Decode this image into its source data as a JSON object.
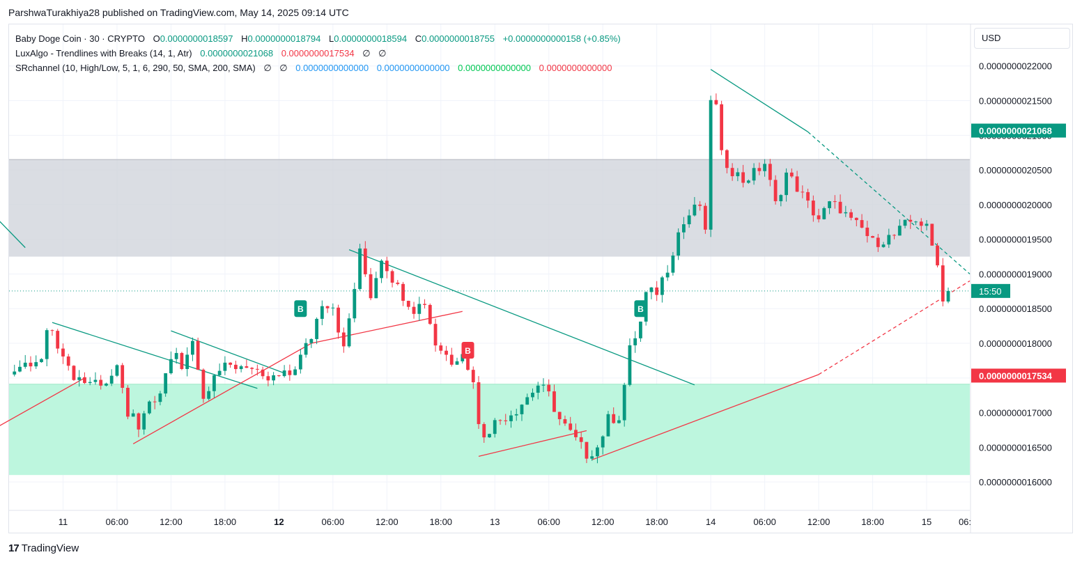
{
  "header": {
    "publisher_line": "ParshwaTurakhiya28 published on TradingView.com, May 14, 2025 09:14 UTC"
  },
  "legend": {
    "symbol": {
      "title": "Baby Doge Coin · 30 · CRYPTO",
      "o_label": "O",
      "o_value": "0.0000000018597",
      "h_label": "H",
      "h_value": "0.0000000018794",
      "l_label": "L",
      "l_value": "0.0000000018594",
      "c_label": "C",
      "c_value": "0.0000000018755",
      "change": "+0.0000000000158 (+0.85%)"
    },
    "luxalgo": {
      "title": "LuxAlgo - Trendlines with Breaks (14, 1, Atr)",
      "upper": "0.0000000021068",
      "lower": "0.0000000017534",
      "n1": "∅",
      "n2": "∅"
    },
    "srchannel": {
      "title": "SRchannel (10, High/Low, 5, 1, 6, 290, 50, SMA, 200, SMA)",
      "n1": "∅",
      "n2": "∅",
      "v1": "0.0000000000000",
      "v2": "0.0000000000000",
      "v3": "0.0000000000000",
      "v4": "0.0000000000000"
    }
  },
  "currency_button": "USD",
  "footer": {
    "brand": "TradingView",
    "logo_glyph": "17"
  },
  "colors": {
    "up": "#089981",
    "down": "#f23645",
    "trend_down": "#089981",
    "trend_up": "#f23645",
    "resistance_zone": "#d1d4dc",
    "support_zone": "#b9f6dc",
    "grid": "#f0f3fa"
  },
  "chart_data": {
    "type": "candlestick",
    "title": "Baby Doge Coin · 30 · CRYPTO",
    "ylim": [
      1.56e-09,
      2.26e-09
    ],
    "y_ticks": [
      "0.0000000022000",
      "0.0000000021500",
      "0.0000000021000",
      "0.0000000020500",
      "0.0000000020000",
      "0.0000000019500",
      "0.0000000019000",
      "0.0000000018500",
      "0.0000000018000",
      "0.0000000017500",
      "0.0000000017000",
      "0.0000000016500",
      "0.0000000016000"
    ],
    "y_tick_values": [
      2.2e-09,
      2.15e-09,
      2.1e-09,
      2.05e-09,
      2e-09,
      1.95e-09,
      1.9e-09,
      1.85e-09,
      1.8e-09,
      1.75e-09,
      1.7e-09,
      1.65e-09,
      1.6e-09
    ],
    "x_axis_range_bars": [
      -10,
      168
    ],
    "x_ticks": [
      {
        "label": "11",
        "bar": 0,
        "bold": false
      },
      {
        "label": "06:00",
        "bar": 10,
        "bold": false
      },
      {
        "label": "12:00",
        "bar": 20,
        "bold": false
      },
      {
        "label": "18:00",
        "bar": 30,
        "bold": false
      },
      {
        "label": "12",
        "bar": 40,
        "bold": true
      },
      {
        "label": "06:00",
        "bar": 50,
        "bold": false
      },
      {
        "label": "12:00",
        "bar": 60,
        "bold": false
      },
      {
        "label": "18:00",
        "bar": 70,
        "bold": false
      },
      {
        "label": "13",
        "bar": 80,
        "bold": false
      },
      {
        "label": "06:00",
        "bar": 90,
        "bold": false
      },
      {
        "label": "12:00",
        "bar": 100,
        "bold": false
      },
      {
        "label": "18:00",
        "bar": 110,
        "bold": false
      },
      {
        "label": "14",
        "bar": 120,
        "bold": false
      },
      {
        "label": "06:00",
        "bar": 130,
        "bold": false
      },
      {
        "label": "12:00",
        "bar": 140,
        "bold": false
      },
      {
        "label": "18:00",
        "bar": 150,
        "bold": false
      },
      {
        "label": "15",
        "bar": 160,
        "bold": false
      },
      {
        "label": "06:",
        "bar": 170,
        "bold": false
      }
    ],
    "bar_interval": "30 minutes",
    "close_path_keypoints": [
      [
        -9,
        1.76e-09
      ],
      [
        -4,
        1.775e-09
      ],
      [
        -3,
        1.82e-09
      ],
      [
        0,
        1.79e-09
      ],
      [
        1,
        1.76e-09
      ],
      [
        4,
        1.745e-09
      ],
      [
        8,
        1.745e-09
      ],
      [
        10,
        1.76e-09
      ],
      [
        12,
        1.7e-09
      ],
      [
        13,
        1.69e-09
      ],
      [
        14,
        1.67e-09
      ],
      [
        15,
        1.7e-09
      ],
      [
        18,
        1.725e-09
      ],
      [
        19,
        1.76e-09
      ],
      [
        21,
        1.785e-09
      ],
      [
        22,
        1.76e-09
      ],
      [
        24,
        1.81e-09
      ],
      [
        26,
        1.72e-09
      ],
      [
        28,
        1.76e-09
      ],
      [
        34,
        1.77e-09
      ],
      [
        37,
        1.745e-09
      ],
      [
        42,
        1.755e-09
      ],
      [
        44,
        1.78e-09
      ],
      [
        46,
        1.81e-09
      ],
      [
        48,
        1.86e-09
      ],
      [
        50,
        1.855e-09
      ],
      [
        52,
        1.79e-09
      ],
      [
        54,
        1.88e-09
      ],
      [
        55,
        1.93e-09
      ],
      [
        57,
        1.87e-09
      ],
      [
        59,
        1.925e-09
      ],
      [
        62,
        1.88e-09
      ],
      [
        63,
        1.87e-09
      ],
      [
        65,
        1.85e-09
      ],
      [
        67,
        1.86e-09
      ],
      [
        69,
        1.8e-09
      ],
      [
        72,
        1.775e-09
      ],
      [
        74,
        1.79e-09
      ],
      [
        75,
        1.76e-09
      ],
      [
        76,
        1.75e-09
      ],
      [
        77,
        1.68e-09
      ],
      [
        78,
        1.67e-09
      ],
      [
        80,
        1.685e-09
      ],
      [
        84,
        1.705e-09
      ],
      [
        88,
        1.74e-09
      ],
      [
        90,
        1.725e-09
      ],
      [
        92,
        1.69e-09
      ],
      [
        95,
        1.66e-09
      ],
      [
        97,
        1.64e-09
      ],
      [
        99,
        1.65e-09
      ],
      [
        101,
        1.69e-09
      ],
      [
        103,
        1.695e-09
      ],
      [
        104,
        1.74e-09
      ],
      [
        105,
        1.79e-09
      ],
      [
        107,
        1.83e-09
      ],
      [
        108,
        1.87e-09
      ],
      [
        110,
        1.875e-09
      ],
      [
        112,
        1.91e-09
      ],
      [
        114,
        1.96e-09
      ],
      [
        116,
        1.985e-09
      ],
      [
        118,
        2e-09
      ],
      [
        119,
        1.955e-09
      ],
      [
        120,
        2.155e-09
      ],
      [
        121,
        2.14e-09
      ],
      [
        122,
        2.07e-09
      ],
      [
        124,
        2.05e-09
      ],
      [
        126,
        2.035e-09
      ],
      [
        128,
        2.045e-09
      ],
      [
        130,
        2.06e-09
      ],
      [
        132,
        2e-09
      ],
      [
        134,
        2.045e-09
      ],
      [
        136,
        2.025e-09
      ],
      [
        138,
        2e-09
      ],
      [
        140,
        1.98e-09
      ],
      [
        142,
        2e-09
      ],
      [
        144,
        1.995e-09
      ],
      [
        146,
        1.975e-09
      ],
      [
        148,
        1.965e-09
      ],
      [
        150,
        1.945e-09
      ],
      [
        152,
        1.95e-09
      ],
      [
        154,
        1.955e-09
      ],
      [
        156,
        1.97e-09
      ],
      [
        158,
        1.98e-09
      ],
      [
        160,
        1.965e-09
      ],
      [
        161,
        1.94e-09
      ],
      [
        162,
        1.92e-09
      ],
      [
        163,
        1.86e-09
      ],
      [
        164,
        1.875e-09
      ]
    ],
    "zones": [
      {
        "name": "resistance",
        "from": 1.925e-09,
        "to": 2.065e-09
      },
      {
        "name": "support",
        "from": 1.61e-09,
        "to": 1.741e-09
      }
    ],
    "trendlines": [
      {
        "kind": "down",
        "x1": -12,
        "y1": 1.978e-09,
        "x2": -7,
        "y2": 1.938e-09,
        "style": "solid"
      },
      {
        "kind": "down",
        "x1": -2,
        "y1": 1.83e-09,
        "x2": 36,
        "y2": 1.735e-09,
        "style": "solid"
      },
      {
        "kind": "down",
        "x1": 20,
        "y1": 1.818e-09,
        "x2": 41,
        "y2": 1.757e-09,
        "style": "solid"
      },
      {
        "kind": "down",
        "x1": 53,
        "y1": 1.935e-09,
        "x2": 117,
        "y2": 1.74e-09,
        "style": "solid"
      },
      {
        "kind": "down",
        "x1": 120,
        "y1": 2.195e-09,
        "x2": 138,
        "y2": 2.105e-09,
        "style": "solid"
      },
      {
        "kind": "down",
        "x1": 138,
        "y1": 2.105e-09,
        "x2": 168,
        "y2": 1.9e-09,
        "style": "dashed"
      },
      {
        "kind": "up",
        "x1": -12,
        "y1": 1.68e-09,
        "x2": 4,
        "y2": 1.75e-09,
        "style": "solid"
      },
      {
        "kind": "up",
        "x1": 13,
        "y1": 1.655e-09,
        "x2": 46,
        "y2": 1.8e-09,
        "style": "solid"
      },
      {
        "kind": "up",
        "x1": 46,
        "y1": 1.8e-09,
        "x2": 74,
        "y2": 1.846e-09,
        "style": "solid"
      },
      {
        "kind": "up",
        "x1": 77,
        "y1": 1.637e-09,
        "x2": 97,
        "y2": 1.674e-09,
        "style": "solid"
      },
      {
        "kind": "up",
        "x1": 98,
        "y1": 1.632e-09,
        "x2": 140,
        "y2": 1.755e-09,
        "style": "solid"
      },
      {
        "kind": "up",
        "x1": 140,
        "y1": 1.755e-09,
        "x2": 168,
        "y2": 1.89e-09,
        "style": "dashed"
      }
    ],
    "signals": [
      {
        "label": "B",
        "bar": 44,
        "price": 1.85e-09,
        "kind": "up"
      },
      {
        "label": "B",
        "bar": 75,
        "price": 1.79e-09,
        "kind": "down"
      },
      {
        "label": "B",
        "bar": 107,
        "price": 1.85e-09,
        "kind": "up"
      }
    ],
    "price_line": {
      "value": 1.8755e-09,
      "countdown": "15:50"
    },
    "axis_markers": [
      {
        "text": "0.0000000021068",
        "value": 2.1068e-09,
        "color": "#089981"
      },
      {
        "text": "0.0000000017534",
        "value": 1.7534e-09,
        "color": "#f23645"
      }
    ]
  }
}
